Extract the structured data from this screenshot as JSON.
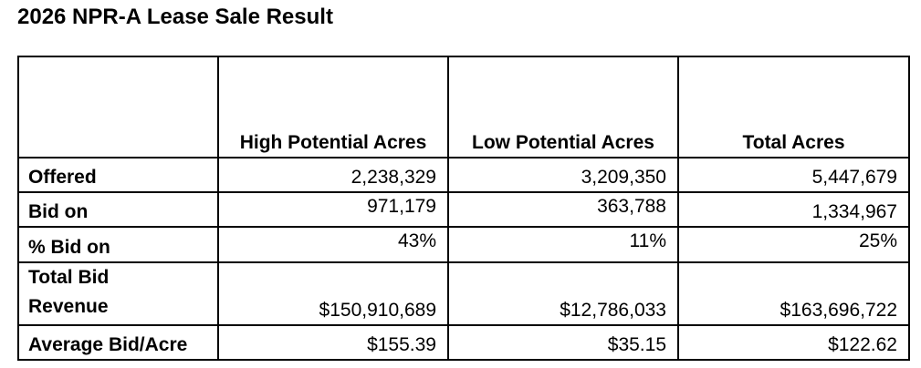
{
  "title": "2026 NPR-A Lease Sale Result",
  "table": {
    "headers": [
      "",
      "High Potential Acres",
      "Low Potential Acres",
      "Total Acres"
    ],
    "rows": [
      {
        "label": "Offered",
        "values": [
          "2,238,329",
          "3,209,350",
          "5,447,679"
        ]
      },
      {
        "label": "Bid on",
        "values": [
          "971,179",
          "363,788",
          "1,334,967"
        ]
      },
      {
        "label": "% Bid on",
        "values": [
          "43%",
          "11%",
          "25%"
        ]
      },
      {
        "label_line1": "Total Bid",
        "label_line2": "Revenue",
        "values": [
          "$150,910,689",
          "$12,786,033",
          "$163,696,722"
        ]
      },
      {
        "label": "Average Bid/Acre",
        "values": [
          "$155.39",
          "$35.15",
          "$122.62"
        ]
      }
    ]
  }
}
